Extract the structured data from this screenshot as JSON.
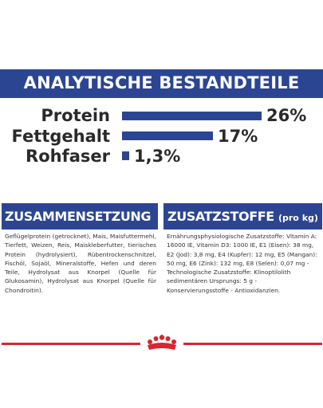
{
  "analysis": {
    "title": "ANALYTISCHE BESTANDTEILE",
    "items": [
      {
        "label": "Protein",
        "value_text": "26%",
        "value": 26
      },
      {
        "label": "Fettgehalt",
        "value_text": "17%",
        "value": 17
      },
      {
        "label": "Rohfaser",
        "value_text": "1,3%",
        "value": 1.3
      }
    ]
  },
  "composition": {
    "heading": "ZUSAMMENSETZUNG",
    "text": "Geflügelprotein (getrocknet), Mais, Maisfuttermehl, Tierfett, Weizen, Reis, Maiskleberfutter, tierisches Protein (hydrolysiert), Rübentrockenschnitzel, Fischöl, Sojaöl, Mineralstoffe, Hefen und deren Teile, Hydrolysat aus Knorpel (Quelle für Glukosamin), Hydrolysat aus Knorpel (Quelle für Chondroitin)."
  },
  "additives": {
    "heading": "ZUSATZSTOFFE",
    "heading_suffix": "(pro kg)",
    "text": "Ernährungsphysiologische Zusatzstoffe: Vitamin A: 16000 IE, Vitamin D3: 1000 IE, E1 (Eisen): 38 mg, E2 (Jod): 3,8 mg, E4 (Kupfer): 12 mg, E5 (Mangan): 50 mg, E6 (Zink): 132 mg, E8 (Selen): 0,07 mg - Technologische Zusatzstoffe: Klinoptilolith sedimentären Ursprungs: 5 g - Konservierungsstoffe - Antioxidanzien."
  },
  "colors": {
    "brand_blue": "#2c4593",
    "brand_red": "#d8262f"
  },
  "logo_icon": "crown-icon"
}
